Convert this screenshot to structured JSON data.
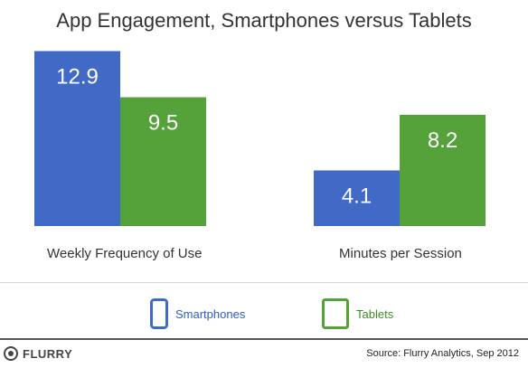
{
  "title": "App Engagement, Smartphones versus Tablets",
  "chart_data": {
    "type": "bar",
    "title": "App Engagement, Smartphones versus Tablets",
    "categories": [
      "Weekly Frequency of Use",
      "Minutes per Session"
    ],
    "series": [
      {
        "name": "Smartphones",
        "values": [
          12.9,
          4.1
        ],
        "color": "#4169c6"
      },
      {
        "name": "Tablets",
        "values": [
          9.5,
          8.2
        ],
        "color": "#55a23a"
      }
    ],
    "data_labels": [
      [
        "12.9",
        "4.1"
      ],
      [
        "9.5",
        "8.2"
      ]
    ],
    "ylim": [
      0,
      14
    ],
    "grid": false,
    "legend_position": "bottom"
  },
  "legend": {
    "smartphones": {
      "label": "Smartphones",
      "icon": "smartphone-icon",
      "color": "#4169c6"
    },
    "tablets": {
      "label": "Tablets",
      "icon": "tablet-icon",
      "color": "#55a23a"
    }
  },
  "footer": {
    "logo_text": "FLURRY",
    "source": "Source: Flurry Analytics, Sep 2012"
  }
}
